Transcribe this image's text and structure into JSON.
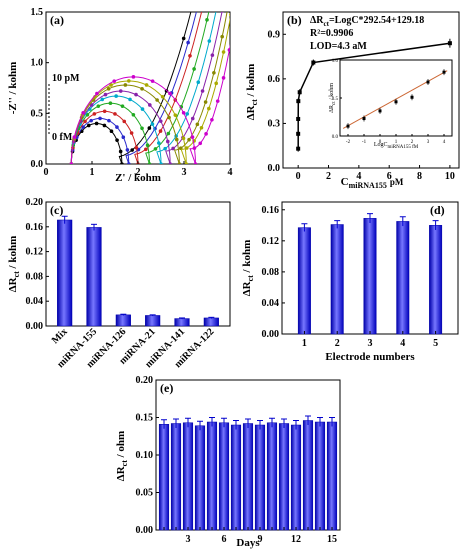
{
  "chart_data": [
    {
      "panel": "(a)",
      "type": "scatter",
      "xlabel": "Z' / kohm",
      "ylabel": "-Z'' / kohm",
      "xlim": [
        0,
        4
      ],
      "ylim": [
        0,
        1.5
      ],
      "xticks": [
        "0",
        "1",
        "2",
        "3",
        "4"
      ],
      "yticks": [
        "0.0",
        "0.5",
        "1.0",
        "1.5"
      ],
      "annotations": [
        "10 pM",
        "0 fM"
      ],
      "series": [
        {
          "color": "#000000",
          "x0": 0.55,
          "d": 1.1,
          "h": 0.4,
          "tail": 3.1
        },
        {
          "color": "#2a2acc",
          "x0": 0.55,
          "d": 1.25,
          "h": 0.45,
          "tail": 3.15
        },
        {
          "color": "#cc2222",
          "x0": 0.55,
          "d": 1.45,
          "h": 0.52,
          "tail": 3.05
        },
        {
          "color": "#22aa22",
          "x0": 0.55,
          "d": 1.7,
          "h": 0.6,
          "tail": 3.0
        },
        {
          "color": "#00aacc",
          "x0": 0.55,
          "d": 1.95,
          "h": 0.67,
          "tail": 2.95
        },
        {
          "color": "#8822aa",
          "x0": 0.55,
          "d": 2.15,
          "h": 0.72,
          "tail": 2.95
        },
        {
          "color": "#888800",
          "x0": 0.55,
          "d": 2.35,
          "h": 0.78,
          "tail": 2.9
        },
        {
          "color": "#aaaa00",
          "x0": 0.55,
          "d": 2.5,
          "h": 0.82,
          "tail": 2.9
        },
        {
          "color": "#cc00cc",
          "x0": 0.55,
          "d": 2.7,
          "h": 0.86,
          "tail": 2.85
        }
      ]
    },
    {
      "panel": "(b)",
      "type": "line",
      "xlabel": "C",
      "xlabel_sub": "miRNA155",
      "xlabel_unit": "pM",
      "ylabel": "ΔR",
      "ylabel_sub": "ct",
      "ylabel_unit": " / kohm",
      "xlim": [
        -1,
        10.6
      ],
      "ylim": [
        0,
        1.05
      ],
      "xticks": [
        0,
        2,
        4,
        6,
        8,
        10
      ],
      "yticks": [
        "0.0",
        "0.3",
        "0.6",
        "0.9"
      ],
      "x": [
        1e-05,
        0.0001,
        0.001,
        0.01,
        0.1,
        1,
        10
      ],
      "y": [
        0.13,
        0.23,
        0.33,
        0.45,
        0.51,
        0.71,
        0.84
      ],
      "err": [
        0.02,
        0.02,
        0.02,
        0.02,
        0.02,
        0.02,
        0.03
      ],
      "equation_prefix": "ΔR",
      "equation_sub": "ct",
      "equation": "=LogC*292.54+129.18",
      "r2": "R²=0.9906",
      "lod": "LOD=4.3 aM",
      "inset": {
        "xlabel": "LogC",
        "xlabel_sub": "miRNA155 fM",
        "ylabel": "ΔR",
        "ylabel_sub": "ct",
        "ylabel_unit": " / kohm",
        "xlim": [
          -2.5,
          4.5
        ],
        "ylim": [
          0,
          1.0
        ],
        "xticks": [
          "-2",
          "-1",
          "0",
          "1",
          "2",
          "3",
          "4"
        ],
        "yticks": [
          "0.0",
          "0.5",
          "1.0"
        ],
        "x": [
          -2,
          -1,
          0,
          1,
          2,
          3,
          4
        ],
        "y": [
          0.13,
          0.23,
          0.33,
          0.45,
          0.51,
          0.71,
          0.84
        ],
        "fit": [
          [
            -2.3,
            0.1
          ],
          [
            4.2,
            0.86
          ]
        ]
      }
    },
    {
      "panel": "(c)",
      "type": "bar",
      "ylabel": "ΔR",
      "ylabel_sub": "ct",
      "ylabel_unit": " / kohm",
      "ylim": [
        0,
        0.2
      ],
      "yticks": [
        "0.00",
        "0.04",
        "0.08",
        "0.12",
        "0.16",
        "0.20"
      ],
      "categories": [
        "Mix",
        "miRNA-155",
        "miRNA-126",
        "miRNA-21",
        "miRNA-141",
        "miRNA-122"
      ],
      "values": [
        0.171,
        0.159,
        0.018,
        0.017,
        0.012,
        0.013
      ],
      "err": [
        0.006,
        0.005,
        0.001,
        0.001,
        0.001,
        0.001
      ]
    },
    {
      "panel": "(d)",
      "type": "bar",
      "xlabel": "Electrode numbers",
      "ylabel": "ΔR",
      "ylabel_sub": "ct",
      "ylabel_unit": " / kohm",
      "ylim": [
        0,
        0.17
      ],
      "yticks": [
        "0.00",
        "0.04",
        "0.08",
        "0.12",
        "0.16"
      ],
      "categories": [
        "1",
        "2",
        "3",
        "4",
        "5"
      ],
      "values": [
        0.137,
        0.141,
        0.149,
        0.145,
        0.14
      ],
      "err": [
        0.005,
        0.005,
        0.006,
        0.006,
        0.006
      ]
    },
    {
      "panel": "(e)",
      "type": "bar",
      "xlabel": "Days",
      "ylabel": "ΔR",
      "ylabel_sub": "ct",
      "ylabel_unit": " / ohm",
      "ylim": [
        0,
        0.2
      ],
      "yticks": [
        "0.00",
        "0.05",
        "0.10",
        "0.15",
        "0.20"
      ],
      "xtick_labels": [
        "3",
        "6",
        "9",
        "12",
        "15"
      ],
      "categories": [
        "1",
        "2",
        "3",
        "4",
        "5",
        "6",
        "7",
        "8",
        "9",
        "10",
        "11",
        "12",
        "13",
        "14",
        "15"
      ],
      "values": [
        0.141,
        0.142,
        0.143,
        0.139,
        0.144,
        0.143,
        0.14,
        0.142,
        0.14,
        0.143,
        0.142,
        0.14,
        0.146,
        0.144,
        0.144
      ],
      "err": [
        0.006,
        0.006,
        0.006,
        0.006,
        0.006,
        0.006,
        0.006,
        0.006,
        0.006,
        0.006,
        0.006,
        0.006,
        0.006,
        0.006,
        0.006
      ]
    }
  ],
  "colors": {
    "bar": "#2222ee",
    "bar_light": "#7777ff",
    "bar_dark": "#0000aa",
    "line": "#000000"
  }
}
